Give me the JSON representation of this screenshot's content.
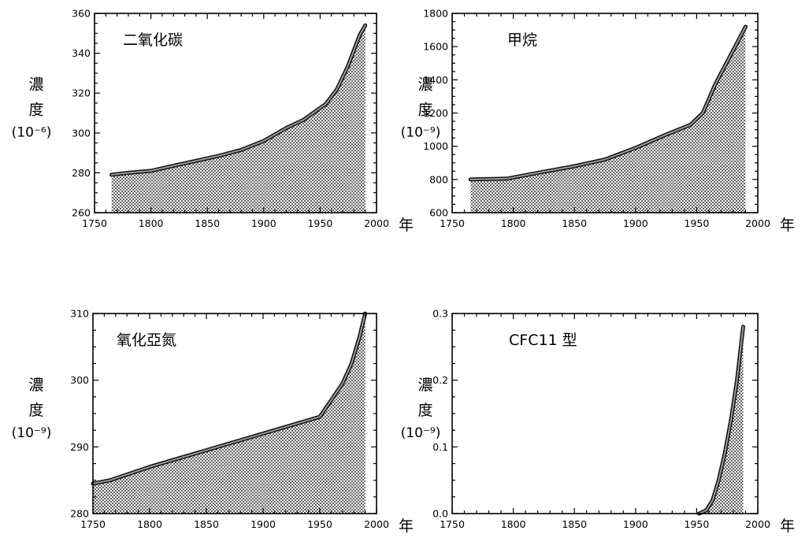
{
  "chart_data": [
    {
      "type": "area",
      "title": "二氧化碳",
      "ylabel": [
        "濃",
        "度",
        "(10⁻⁶)"
      ],
      "xunit": "年",
      "xlim": [
        1750,
        2000
      ],
      "ylim": [
        260,
        360
      ],
      "xticks": [
        1750,
        1800,
        1850,
        1900,
        1950,
        2000
      ],
      "yticks": [
        260,
        280,
        300,
        320,
        340,
        360
      ],
      "series": [
        {
          "x": [
            1765,
            1780,
            1800,
            1820,
            1840,
            1860,
            1880,
            1900,
            1920,
            1935,
            1955,
            1965,
            1975,
            1985,
            1990
          ],
          "y": [
            279,
            280,
            281,
            283.5,
            286,
            288.5,
            291.5,
            296,
            302.5,
            306.5,
            314.5,
            322,
            334,
            349,
            354
          ]
        }
      ]
    },
    {
      "type": "area",
      "title": "甲烷",
      "ylabel": [
        "濃",
        "度",
        "(10⁻⁹)"
      ],
      "xunit": "年",
      "xlim": [
        1750,
        2000
      ],
      "ylim": [
        600,
        1800
      ],
      "xticks": [
        1750,
        1800,
        1850,
        1900,
        1950,
        2000
      ],
      "yticks": [
        600,
        800,
        1000,
        1200,
        1400,
        1600,
        1800
      ],
      "series": [
        {
          "x": [
            1765,
            1795,
            1820,
            1850,
            1875,
            1900,
            1925,
            1945,
            1955,
            1965,
            1975,
            1990
          ],
          "y": [
            800,
            805,
            840,
            880,
            920,
            990,
            1070,
            1130,
            1200,
            1370,
            1510,
            1720
          ]
        }
      ]
    },
    {
      "type": "area",
      "title": "氧化亞氮",
      "ylabel": [
        "濃",
        "度",
        "(10⁻⁹)"
      ],
      "xunit": "年",
      "xlim": [
        1750,
        2000
      ],
      "ylim": [
        280,
        310
      ],
      "xticks": [
        1750,
        1800,
        1850,
        1900,
        1950,
        2000
      ],
      "yticks": [
        280,
        290,
        300,
        310
      ],
      "series": [
        {
          "x": [
            1750,
            1765,
            1800,
            1850,
            1900,
            1930,
            1950,
            1960,
            1970,
            1978,
            1985,
            1990
          ],
          "y": [
            284.5,
            285,
            287,
            289.5,
            292,
            293.5,
            294.5,
            297,
            299.5,
            302.5,
            306.5,
            310
          ]
        }
      ]
    },
    {
      "type": "area",
      "title": "CFC11 型",
      "ylabel": [
        "濃",
        "度",
        "(10⁻⁹)"
      ],
      "xunit": "年",
      "xlim": [
        1750,
        2000
      ],
      "ylim": [
        0.0,
        0.3
      ],
      "xticks": [
        1750,
        1800,
        1850,
        1900,
        1950,
        2000
      ],
      "yticks": [
        "0.0",
        "0.1",
        "0.2",
        "0.3"
      ],
      "series": [
        {
          "x": [
            1952,
            1958,
            1963,
            1968,
            1973,
            1978,
            1983,
            1988
          ],
          "y": [
            0.0,
            0.005,
            0.02,
            0.05,
            0.09,
            0.14,
            0.2,
            0.28
          ]
        }
      ]
    }
  ]
}
